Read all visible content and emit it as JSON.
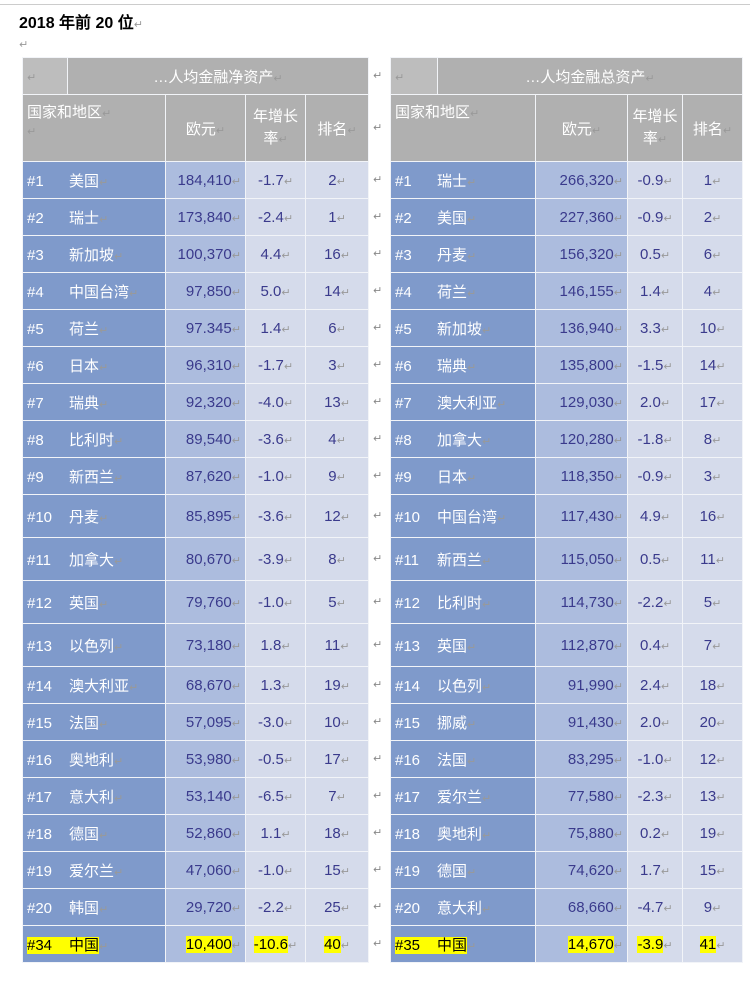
{
  "title": "2018 年前 20 位",
  "colors": {
    "name_col": "#7f9acb",
    "euro_col": "#acbcde",
    "light_col": "#d5dbeb",
    "header": "#b0b0b0",
    "text": "#3a3a8c",
    "highlight": "#ffff00"
  },
  "columns": {
    "country": "国家和地区",
    "euro": "欧元",
    "growth": "年增长率",
    "rank": "排名"
  },
  "left": {
    "heading": "…人均金融净资产",
    "rows": [
      [
        "#1",
        "美国",
        "184,410",
        "-1.7",
        "2"
      ],
      [
        "#2",
        "瑞士",
        "173,840",
        "-2.4",
        "1"
      ],
      [
        "#3",
        "新加坡",
        "100,370",
        "4.4",
        "16"
      ],
      [
        "#4",
        "中国台湾",
        "97,850",
        "5.0",
        "14"
      ],
      [
        "#5",
        "荷兰",
        "97.345",
        "1.4",
        "6"
      ],
      [
        "#6",
        "日本",
        "96,310",
        "-1.7",
        "3"
      ],
      [
        "#7",
        "瑞典",
        "92,320",
        "-4.0",
        "13"
      ],
      [
        "#8",
        "比利时",
        "89,540",
        "-3.6",
        "4"
      ],
      [
        "#9",
        "新西兰",
        "87,620",
        "-1.0",
        "9"
      ],
      [
        "#10",
        "丹麦",
        "85,895",
        "-3.6",
        "12"
      ],
      [
        "#11",
        "加拿大",
        "80,670",
        "-3.9",
        "8"
      ],
      [
        "#12",
        "英国",
        "79,760",
        "-1.0",
        "5"
      ],
      [
        "#13",
        "以色列",
        "73,180",
        "1.8",
        "11"
      ],
      [
        "#14",
        "澳大利亚",
        "68,670",
        "1.3",
        "19"
      ],
      [
        "#15",
        "法国",
        "57,095",
        "-3.0",
        "10"
      ],
      [
        "#16",
        "奥地利",
        "53,980",
        "-0.5",
        "17"
      ],
      [
        "#17",
        "意大利",
        "53,140",
        "-6.5",
        "7"
      ],
      [
        "#18",
        "德国",
        "52,860",
        "1.1",
        "18"
      ],
      [
        "#19",
        "爱尔兰",
        "47,060",
        "-1.0",
        "15"
      ],
      [
        "#20",
        "韩国",
        "29,720",
        "-2.2",
        "25"
      ]
    ],
    "china": [
      "#34",
      "中国",
      "10,400",
      "-10.6",
      "40"
    ]
  },
  "right": {
    "heading": "…人均金融总资产",
    "rows": [
      [
        "#1",
        "瑞士",
        "266,320",
        "-0.9",
        "1"
      ],
      [
        "#2",
        "美国",
        "227,360",
        "-0.9",
        "2"
      ],
      [
        "#3",
        "丹麦",
        "156,320",
        "0.5",
        "6"
      ],
      [
        "#4",
        "荷兰",
        "146,155",
        "1.4",
        "4"
      ],
      [
        "#5",
        "新加坡",
        "136,940",
        "3.3",
        "10"
      ],
      [
        "#6",
        "瑞典",
        "135,800",
        "-1.5",
        "14"
      ],
      [
        "#7",
        "澳大利亚",
        "129,030",
        "2.0",
        "17"
      ],
      [
        "#8",
        "加拿大",
        "120,280",
        "-1.8",
        "8"
      ],
      [
        "#9",
        "日本",
        "118,350",
        "-0.9",
        "3"
      ],
      [
        "#10",
        "中国台湾",
        "117,430",
        "4.9",
        "16"
      ],
      [
        "#11",
        "新西兰",
        "115,050",
        "0.5",
        "11"
      ],
      [
        "#12",
        "比利时",
        "114,730",
        "-2.2",
        "5"
      ],
      [
        "#13",
        "英国",
        "112,870",
        "0.4",
        "7"
      ],
      [
        "#14",
        "以色列",
        "91,990",
        "2.4",
        "18"
      ],
      [
        "#15",
        "挪威",
        "91,430",
        "2.0",
        "20"
      ],
      [
        "#16",
        "法国",
        "83,295",
        "-1.0",
        "12"
      ],
      [
        "#17",
        "爱尔兰",
        "77,580",
        "-2.3",
        "13"
      ],
      [
        "#18",
        "奥地利",
        "75,880",
        "0.2",
        "19"
      ],
      [
        "#19",
        "德国",
        "74,620",
        "1.7",
        "15"
      ],
      [
        "#20",
        "意大利",
        "68,660",
        "-4.7",
        "9"
      ]
    ],
    "china": [
      "#35",
      "中国",
      "14,670",
      "-3.9",
      "41"
    ]
  }
}
